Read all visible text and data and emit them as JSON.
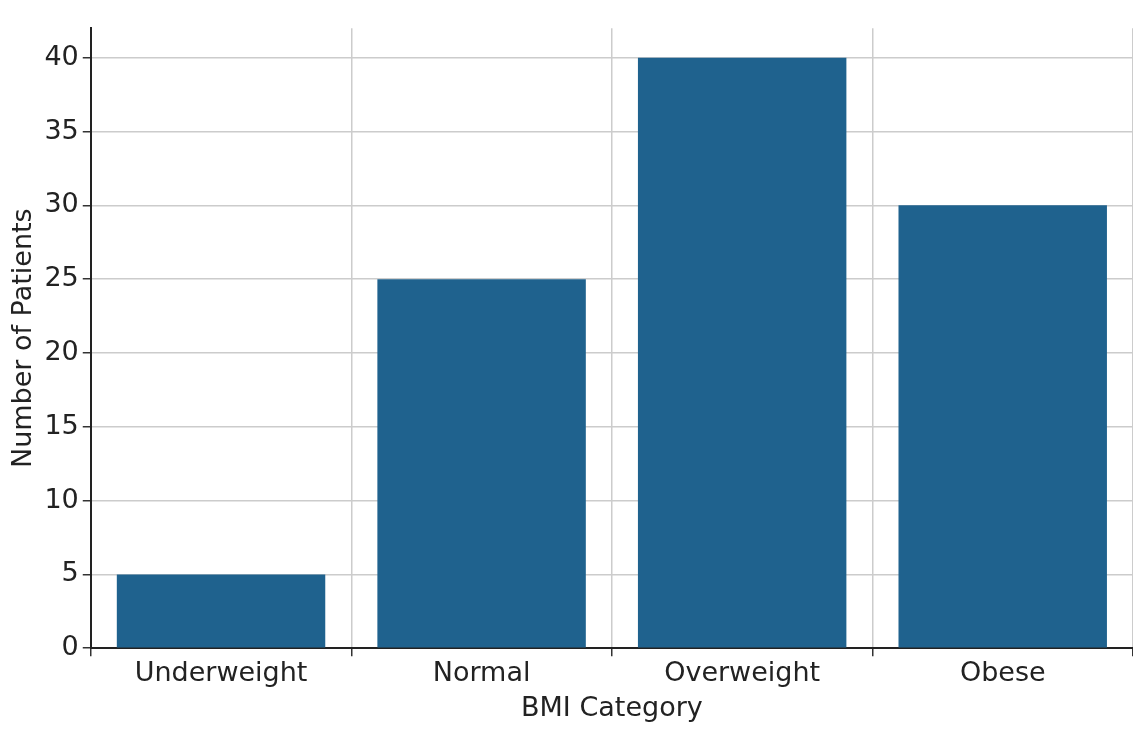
{
  "chart_data": {
    "type": "bar",
    "categories": [
      "Underweight",
      "Normal",
      "Overweight",
      "Obese"
    ],
    "values": [
      5,
      25,
      40,
      30
    ],
    "color": "#1f628e",
    "xlabel": "BMI Category",
    "ylabel": "Number of Patients",
    "ylim": [
      0,
      42
    ],
    "yticks": [
      0,
      5,
      10,
      15,
      20,
      25,
      30,
      35,
      40
    ],
    "grid": true
  }
}
